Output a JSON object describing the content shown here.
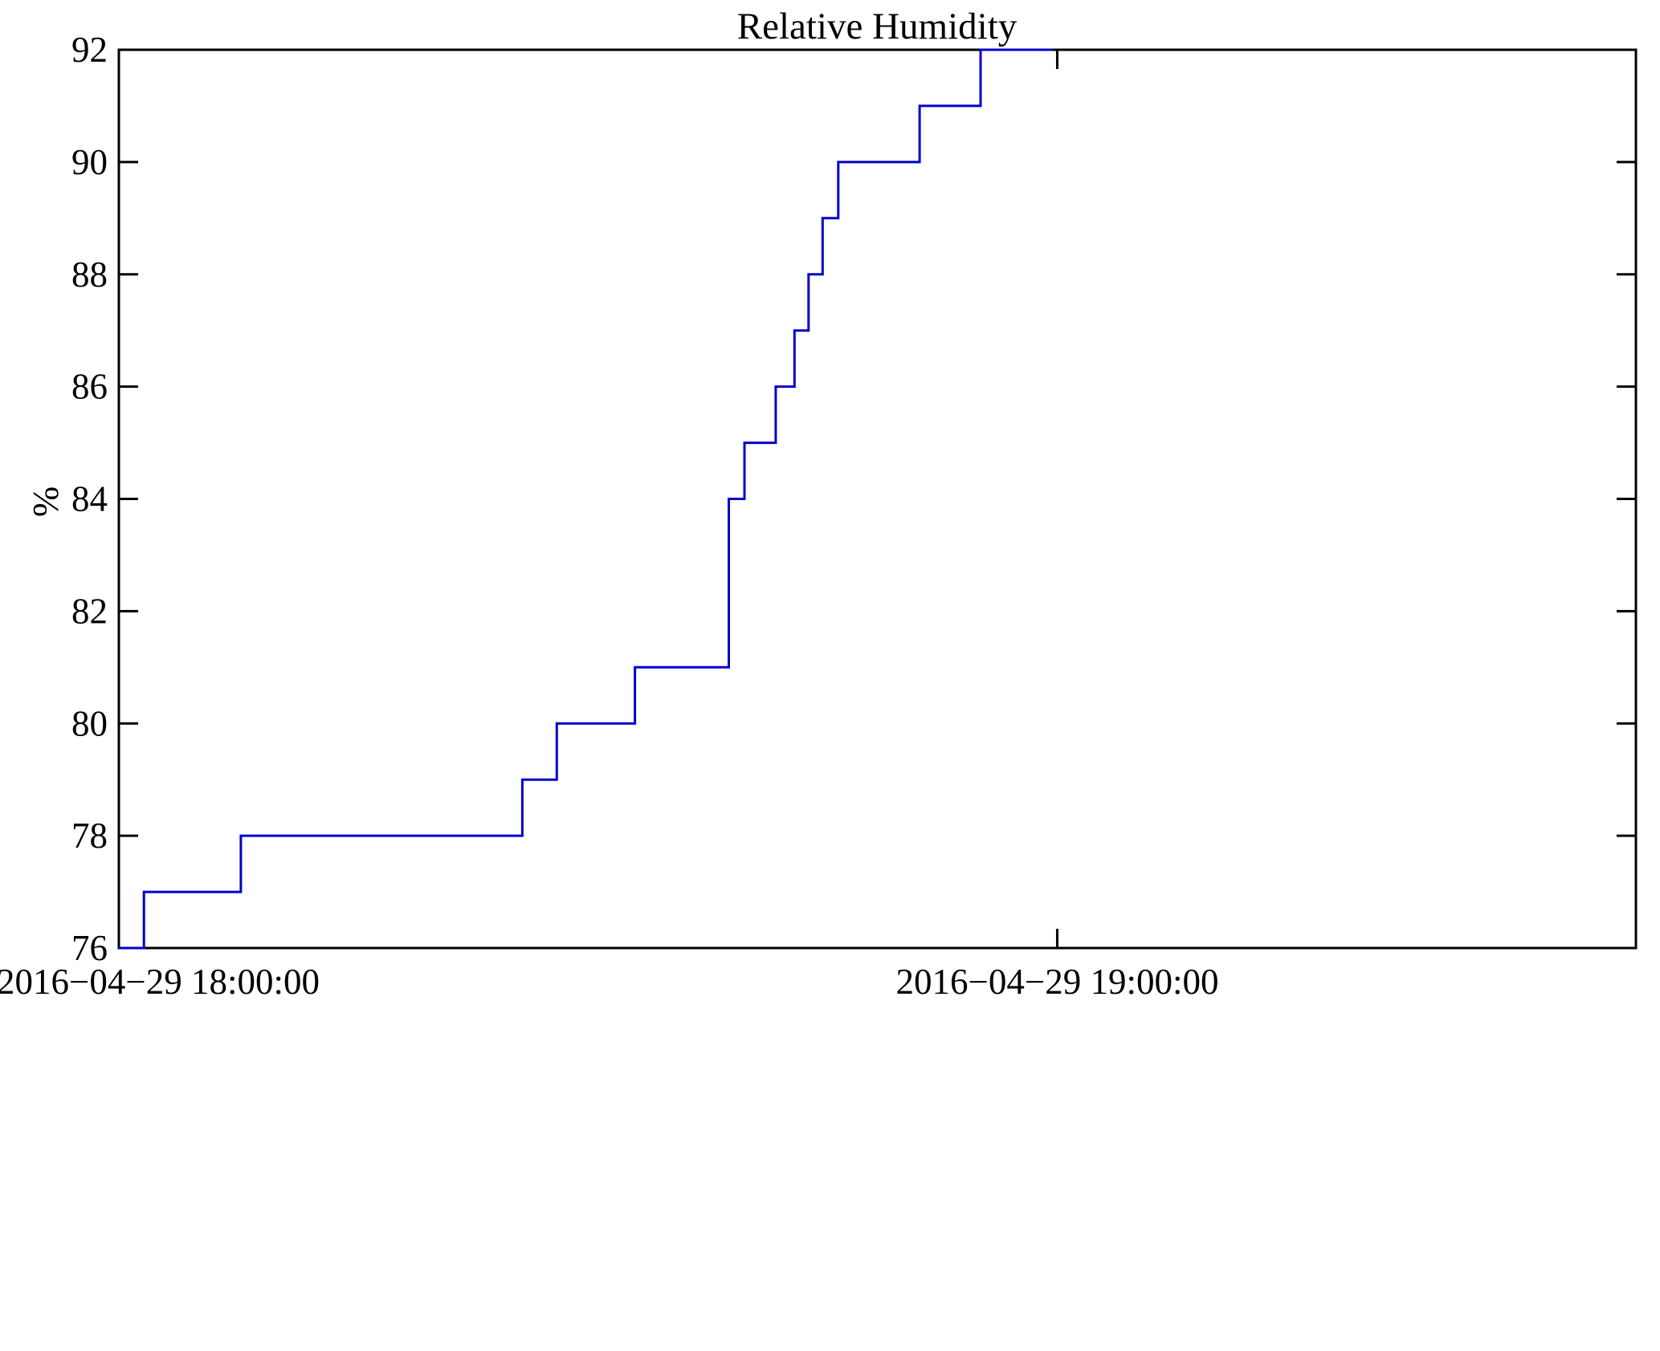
{
  "chart_data": {
    "type": "line",
    "subtype": "step-post",
    "title": "Relative Humidity",
    "ylabel": "%",
    "xlabel": "",
    "line_color": "#0000cc",
    "axis_color": "#000000",
    "background": "#ffffff",
    "grid": false,
    "legend": "none",
    "ylim": [
      76,
      92
    ],
    "yticks": [
      76,
      78,
      80,
      82,
      84,
      86,
      88,
      90,
      92
    ],
    "ytick_labels": [
      "76",
      "78",
      "80",
      "82",
      "84",
      "86",
      "88",
      "90",
      "92"
    ],
    "x_range_minutes": [
      0,
      97
    ],
    "xticks": [
      {
        "minute": 0,
        "label": "2016−04−29 18:00:00"
      },
      {
        "minute": 60,
        "label": "2016−04−29 19:00:00"
      }
    ],
    "series": [
      {
        "name": "Relative Humidity",
        "units": "%",
        "step_points_minute_value": [
          [
            0.0,
            76
          ],
          [
            1.6,
            77
          ],
          [
            7.8,
            78
          ],
          [
            25.8,
            79
          ],
          [
            28.0,
            80
          ],
          [
            33.0,
            81
          ],
          [
            39.0,
            84
          ],
          [
            40.0,
            85
          ],
          [
            42.0,
            86
          ],
          [
            43.2,
            87
          ],
          [
            44.1,
            88
          ],
          [
            45.0,
            89
          ],
          [
            46.0,
            90
          ],
          [
            51.2,
            91
          ],
          [
            55.1,
            92
          ]
        ],
        "end_minute": 59.7
      }
    ]
  }
}
